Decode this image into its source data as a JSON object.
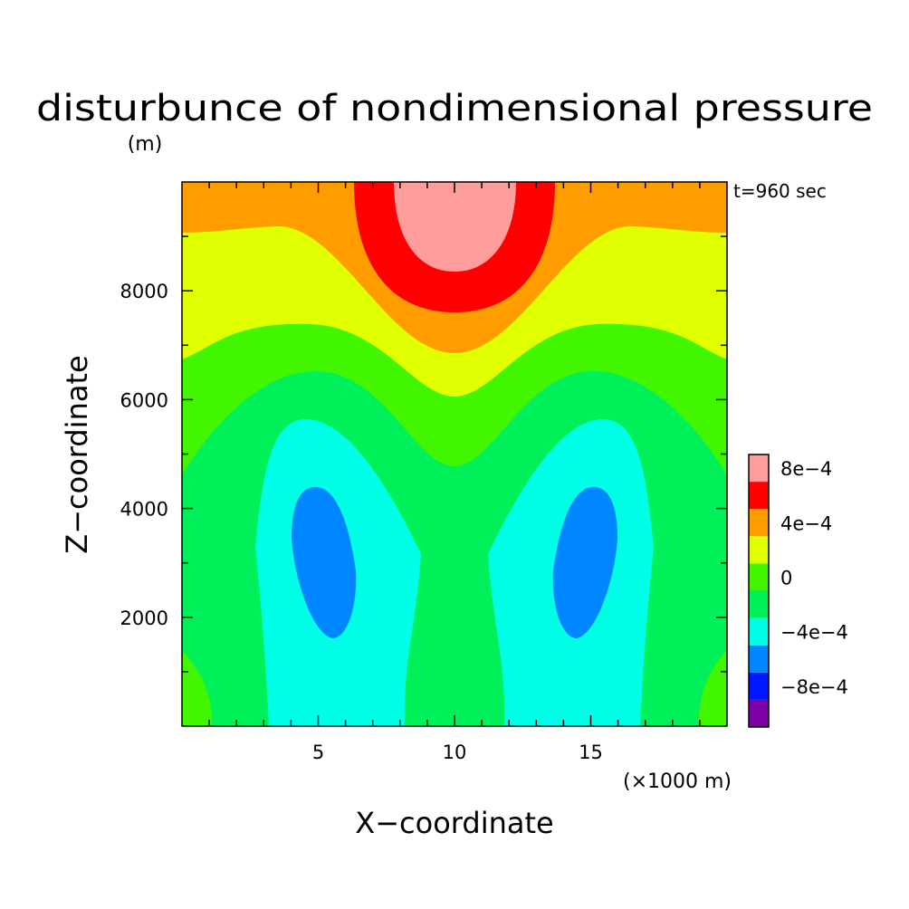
{
  "chart_data": {
    "type": "contour",
    "title": "disturbunce of nondimensional pressure",
    "units_note": "(m)",
    "time_label": "t=960 sec",
    "xlabel": "X−coordinate",
    "ylabel": "Z−coordinate",
    "x_unit_note": "(×1000 m)",
    "xlim": [
      0,
      20
    ],
    "ylim": [
      0,
      10000
    ],
    "x_ticks": [
      5,
      10,
      15
    ],
    "x_tick_labels": [
      "5",
      "10",
      "15"
    ],
    "y_ticks": [
      2000,
      4000,
      6000,
      8000
    ],
    "y_tick_labels": [
      "2000",
      "4000",
      "6000",
      "8000"
    ],
    "colorbar": {
      "levels": [
        -0.0012,
        -0.0008,
        -0.0004,
        0,
        0.0004,
        0.0008,
        0.0012
      ],
      "tick_labels": [
        "−8e−4",
        "−4e−4",
        "0",
        "4e−4",
        "8e−4"
      ],
      "colors": [
        "#7f00a7",
        "#0016ff",
        "#0087ff",
        "#00ffe6",
        "#00f05a",
        "#42f500",
        "#e0ff00",
        "#ff9d00",
        "#ff0000",
        "#ff9d9d"
      ]
    },
    "regions": [
      {
        "level_band": "-4e-4 to -2e-4",
        "center": [
          5,
          3000
        ],
        "color": "#0087ff"
      },
      {
        "level_band": "-4e-4 to -2e-4",
        "center": [
          15,
          3000
        ],
        "color": "#0087ff"
      },
      {
        "level_band": "-2e-4 to 0",
        "center": [
          5,
          2500
        ],
        "color": "#00ffe6"
      },
      {
        "level_band": "-2e-4 to 0",
        "center": [
          15,
          2500
        ],
        "color": "#00ffe6"
      },
      {
        "level_band": "0 to 2e-4",
        "center": [
          10,
          2500
        ],
        "color": "#00f05a"
      },
      {
        "level_band": "2e-4 to 4e-4",
        "center": [
          10,
          5500
        ],
        "color": "#42f500"
      },
      {
        "level_band": "4e-4 to 6e-4",
        "center": [
          10,
          7500
        ],
        "color": "#e0ff00"
      },
      {
        "level_band": "6e-4 to 8e-4",
        "center": [
          10,
          9000
        ],
        "color": "#ff9d00"
      },
      {
        "level_band": "8e-4 to 1e-3",
        "center": [
          10,
          9000
        ],
        "color": "#ff0000"
      },
      {
        "level_band": "1e-3 to 1.2e-3",
        "center": [
          10,
          9500
        ],
        "color": "#ff9d9d"
      }
    ]
  }
}
